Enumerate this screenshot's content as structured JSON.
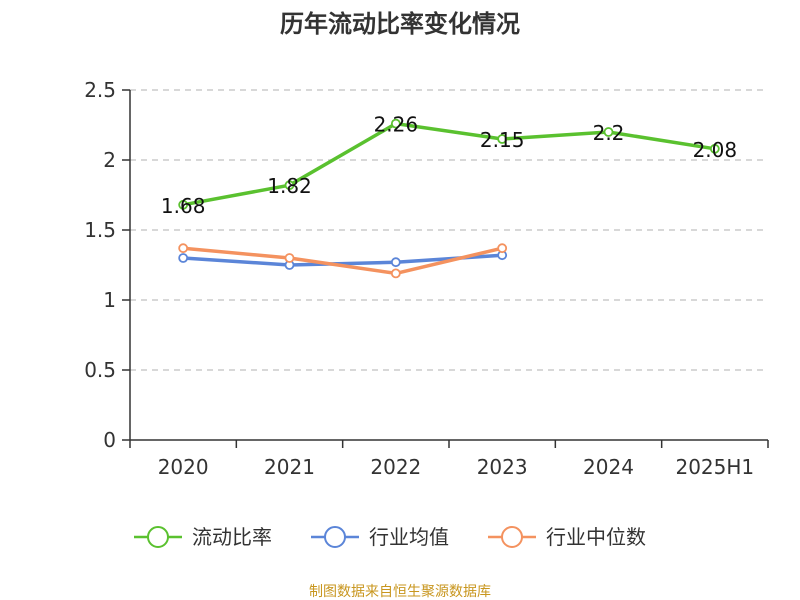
{
  "chart_data": {
    "type": "line",
    "title": "历年流动比率变化情况",
    "categories": [
      "2020",
      "2021",
      "2022",
      "2023",
      "2024",
      "2025H1"
    ],
    "ylim": [
      0,
      2.5
    ],
    "yticks": [
      "0",
      "0.5",
      "1",
      "1.5",
      "2",
      "2.5"
    ],
    "ytick_values": [
      0,
      0.5,
      1,
      1.5,
      2,
      2.5
    ],
    "grid": true,
    "legend_position": "bottom",
    "series": [
      {
        "name": "流动比率",
        "color": "#5ac12f",
        "values": [
          1.68,
          1.82,
          2.26,
          2.15,
          2.2,
          2.08
        ],
        "labels": [
          "1.68",
          "1.82",
          "2.26",
          "2.15",
          "2.2",
          "2.08"
        ],
        "show_labels": true
      },
      {
        "name": "行业均值",
        "color": "#5b85d8",
        "values": [
          1.3,
          1.25,
          1.27,
          1.32,
          null,
          null
        ],
        "show_labels": false
      },
      {
        "name": "行业中位数",
        "color": "#f4925f",
        "values": [
          1.37,
          1.3,
          1.19,
          1.37,
          null,
          null
        ],
        "show_labels": false
      }
    ],
    "source": "制图数据来自恒生聚源数据库"
  }
}
